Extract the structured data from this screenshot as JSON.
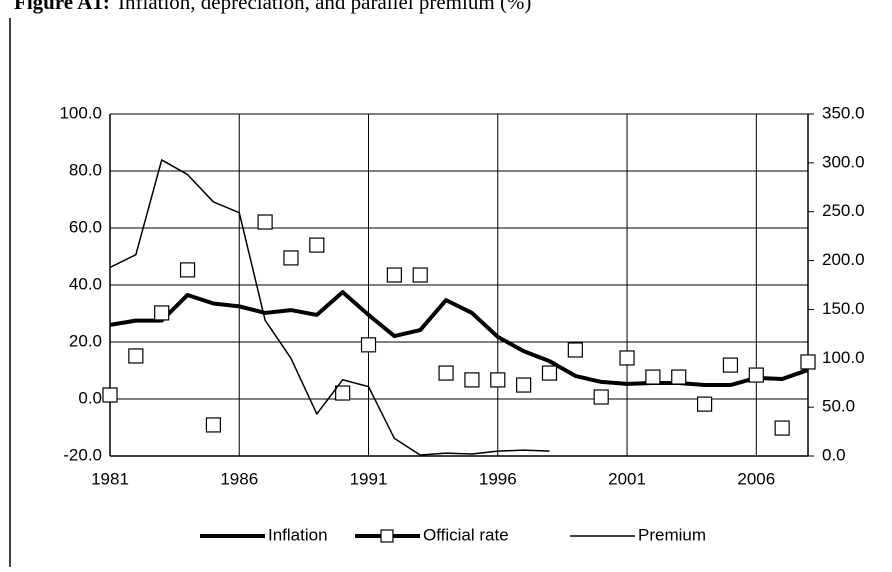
{
  "chart_data": {
    "type": "line",
    "title_label": "Figure A1:",
    "title": "Inflation, depreciation, and parallel premium (%)",
    "x": [
      1981,
      1982,
      1983,
      1984,
      1985,
      1986,
      1987,
      1988,
      1989,
      1990,
      1991,
      1992,
      1993,
      1994,
      1995,
      1996,
      1997,
      1998,
      1999,
      2000,
      2001,
      2002,
      2003,
      2004,
      2005,
      2006,
      2007,
      2008
    ],
    "xlim": [
      1981,
      2008
    ],
    "xticks": [
      1981,
      1986,
      1991,
      1996,
      2001,
      2006
    ],
    "ylim": [
      -20,
      100
    ],
    "yticks": [
      {
        "value": -20,
        "label": "-20.0"
      },
      {
        "value": 0,
        "label": "0.0"
      },
      {
        "value": 20,
        "label": "20.0"
      },
      {
        "value": 40,
        "label": "40.0"
      },
      {
        "value": 60,
        "label": "60.0"
      },
      {
        "value": 80,
        "label": "80.0"
      },
      {
        "value": 100,
        "label": "100.0"
      }
    ],
    "y2lim": [
      0,
      350
    ],
    "y2ticks": [
      {
        "value": 0,
        "label": "0.0"
      },
      {
        "value": 50,
        "label": "50.0"
      },
      {
        "value": 100,
        "label": "100.0"
      },
      {
        "value": 150,
        "label": "150.0"
      },
      {
        "value": 200,
        "label": "200.0"
      },
      {
        "value": 250,
        "label": "250.0"
      },
      {
        "value": 300,
        "label": "300.0"
      },
      {
        "value": 350,
        "label": "350.0"
      }
    ],
    "grid": true,
    "legend": "bottom",
    "series": [
      {
        "name": "Inflation",
        "color": "#000000",
        "line_width": 4,
        "marker": "none",
        "values": [
          26.0,
          27.5,
          27.5,
          36.5,
          33.5,
          32.5,
          30.2,
          31.2,
          29.5,
          37.5,
          29.5,
          22.1,
          24.2,
          34.7,
          30.2,
          21.8,
          16.8,
          13.3,
          8.1,
          6.0,
          5.3,
          5.6,
          5.6,
          4.9,
          4.9,
          7.4,
          7.0,
          10.2
        ]
      },
      {
        "name": "Official rate",
        "color": "#000000",
        "line_width": 4,
        "marker": "square",
        "show_line": false,
        "values": [
          1.4,
          15.1,
          30.2,
          45.3,
          -9.1,
          null,
          62.1,
          49.5,
          54.0,
          2.1,
          19.0,
          43.5,
          43.5,
          9.1,
          6.7,
          6.7,
          4.9,
          9.1,
          17.2,
          0.7,
          14.4,
          7.7,
          7.7,
          -1.8,
          11.9,
          8.4,
          -10.2,
          13.0
        ]
      },
      {
        "name": "Premium",
        "color": "#000000",
        "line_width": 1.5,
        "marker": "none",
        "axis": "y2",
        "values": [
          193,
          206,
          303,
          288,
          260,
          249,
          139,
          100,
          43,
          78,
          71,
          18,
          1,
          3,
          2,
          5,
          6,
          5,
          null,
          null,
          null,
          null,
          null,
          null,
          null,
          null,
          null,
          null
        ]
      }
    ]
  }
}
